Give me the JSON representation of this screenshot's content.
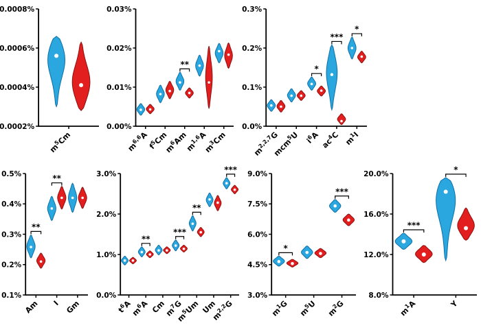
{
  "figure": {
    "background": "#FFFFFF",
    "description": "Violin plots of RNA modification levels, blue vs red group, seven panels"
  },
  "colors": {
    "blue": "#2BA7E0",
    "blue_stroke": "#0E6FA6",
    "red": "#E21E1E",
    "red_stroke": "#8E1010",
    "median": "#FFFFFF",
    "axis": "#000000",
    "stars": "#000000"
  },
  "chart_data": [
    {
      "type": "violin",
      "name": "panel-m5Cm",
      "ylim": [
        0.0002,
        0.0008
      ],
      "yticks": [
        {
          "v": 0.0002,
          "label": "0.0002%"
        },
        {
          "v": 0.0004,
          "label": "0.0004%"
        },
        {
          "v": 0.0006,
          "label": "0.0006%"
        },
        {
          "v": 0.0008,
          "label": "0.0008%"
        }
      ],
      "categories": [
        "m^5^Cm"
      ],
      "series": [
        {
          "name": "group-blue",
          "color": "blue",
          "violins": [
            {
              "m": 0.00056,
              "lo": 0.0003,
              "hi": 0.00066,
              "b": 0.3
            }
          ]
        },
        {
          "name": "group-red",
          "color": "red",
          "violins": [
            {
              "m": 0.00041,
              "lo": 0.00028,
              "hi": 0.00063,
              "b": 0.6
            }
          ]
        }
      ],
      "significance": []
    },
    {
      "type": "violin",
      "name": "panel-low-abundance",
      "ylim": [
        0,
        0.03
      ],
      "yticks": [
        {
          "v": 0,
          "label": "0.00%"
        },
        {
          "v": 0.01,
          "label": "0.01%"
        },
        {
          "v": 0.02,
          "label": "0.02%"
        },
        {
          "v": 0.03,
          "label": "0.03%"
        }
      ],
      "categories": [
        "m^6,6^A",
        "f^5^Cm",
        "m^6^Am",
        "m^1,6^A",
        "m^3^Cm"
      ],
      "series": [
        {
          "name": "group-blue",
          "color": "blue",
          "violins": [
            {
              "m": 0.0042,
              "lo": 0.0028,
              "hi": 0.0058
            },
            {
              "m": 0.0082,
              "lo": 0.006,
              "hi": 0.0105
            },
            {
              "m": 0.0112,
              "lo": 0.0092,
              "hi": 0.0138
            },
            {
              "m": 0.0155,
              "lo": 0.0128,
              "hi": 0.0182
            },
            {
              "m": 0.0192,
              "lo": 0.0162,
              "hi": 0.0212
            }
          ]
        },
        {
          "name": "group-red",
          "color": "red",
          "violins": [
            {
              "m": 0.0043,
              "lo": 0.0032,
              "hi": 0.0056
            },
            {
              "m": 0.009,
              "lo": 0.007,
              "hi": 0.0115
            },
            {
              "m": 0.0085,
              "lo": 0.0072,
              "hi": 0.0098
            },
            {
              "m": 0.0112,
              "lo": 0.0045,
              "hi": 0.0205,
              "w": 0.85
            },
            {
              "m": 0.0183,
              "lo": 0.0148,
              "hi": 0.0213
            }
          ]
        }
      ],
      "significance": [
        {
          "category": 2,
          "stars": "**"
        }
      ]
    },
    {
      "type": "violin",
      "name": "panel-mid-abundance",
      "ylim": [
        0,
        0.3
      ],
      "yticks": [
        {
          "v": 0,
          "label": "0.0%"
        },
        {
          "v": 0.1,
          "label": "0.1%"
        },
        {
          "v": 0.2,
          "label": "0.2%"
        },
        {
          "v": 0.3,
          "label": "0.3%"
        }
      ],
      "categories": [
        "m^2,2,7^G",
        "mcm^5^U",
        "i^6^A",
        "ac^4^C",
        "m^1^I"
      ],
      "series": [
        {
          "name": "group-blue",
          "color": "blue",
          "violins": [
            {
              "m": 0.053,
              "lo": 0.038,
              "hi": 0.068
            },
            {
              "m": 0.078,
              "lo": 0.062,
              "hi": 0.096
            },
            {
              "m": 0.108,
              "lo": 0.092,
              "hi": 0.126
            },
            {
              "m": 0.132,
              "lo": 0.042,
              "hi": 0.208,
              "b": 0.42,
              "w": 1.35
            },
            {
              "m": 0.2,
              "lo": 0.172,
              "hi": 0.228
            }
          ]
        },
        {
          "name": "group-red",
          "color": "red",
          "violins": [
            {
              "m": 0.05,
              "lo": 0.036,
              "hi": 0.066
            },
            {
              "m": 0.078,
              "lo": 0.066,
              "hi": 0.091
            },
            {
              "m": 0.091,
              "lo": 0.077,
              "hi": 0.103
            },
            {
              "m": 0.013,
              "lo": 0.004,
              "hi": 0.032
            },
            {
              "m": 0.178,
              "lo": 0.162,
              "hi": 0.192
            }
          ]
        }
      ],
      "significance": [
        {
          "category": 2,
          "stars": "*"
        },
        {
          "category": 3,
          "stars": "***"
        },
        {
          "category": 4,
          "stars": "*"
        }
      ]
    },
    {
      "type": "violin",
      "name": "panel-Am-I-Gm",
      "ylim": [
        0.1,
        0.5
      ],
      "yticks": [
        {
          "v": 0.1,
          "label": "0.1%"
        },
        {
          "v": 0.2,
          "label": "0.2%"
        },
        {
          "v": 0.3,
          "label": "0.3%"
        },
        {
          "v": 0.4,
          "label": "0.4%"
        },
        {
          "v": 0.5,
          "label": "0.5%"
        }
      ],
      "categories": [
        "Am",
        "I",
        "Gm"
      ],
      "series": [
        {
          "name": "group-blue",
          "color": "blue",
          "violins": [
            {
              "m": 0.258,
              "lo": 0.222,
              "hi": 0.298
            },
            {
              "m": 0.385,
              "lo": 0.345,
              "hi": 0.425
            },
            {
              "m": 0.42,
              "lo": 0.372,
              "hi": 0.468
            }
          ]
        },
        {
          "name": "group-red",
          "color": "red",
          "violins": [
            {
              "m": 0.21,
              "lo": 0.188,
              "hi": 0.238
            },
            {
              "m": 0.42,
              "lo": 0.383,
              "hi": 0.458
            },
            {
              "m": 0.42,
              "lo": 0.385,
              "hi": 0.455
            }
          ]
        }
      ],
      "significance": [
        {
          "category": 0,
          "stars": "**"
        },
        {
          "category": 1,
          "stars": "**"
        }
      ]
    },
    {
      "type": "violin",
      "name": "panel-high-abundance",
      "ylim": [
        0,
        3
      ],
      "yticks": [
        {
          "v": 0,
          "label": "0.0%"
        },
        {
          "v": 1,
          "label": "1.0%"
        },
        {
          "v": 2,
          "label": "2.0%"
        },
        {
          "v": 3,
          "label": "3.0%"
        }
      ],
      "categories": [
        "t^6^A",
        "m^6^A",
        "Cm",
        "m^7^G",
        "m^5^Um",
        "Um",
        "m^2,2^G"
      ],
      "series": [
        {
          "name": "group-blue",
          "color": "blue",
          "violins": [
            {
              "m": 0.85,
              "lo": 0.74,
              "hi": 0.96
            },
            {
              "m": 1.06,
              "lo": 0.94,
              "hi": 1.19
            },
            {
              "m": 1.1,
              "lo": 0.99,
              "hi": 1.23
            },
            {
              "m": 1.22,
              "lo": 1.09,
              "hi": 1.36
            },
            {
              "m": 1.76,
              "lo": 1.58,
              "hi": 1.96
            },
            {
              "m": 2.36,
              "lo": 2.18,
              "hi": 2.52
            },
            {
              "m": 2.76,
              "lo": 2.62,
              "hi": 2.9
            }
          ]
        },
        {
          "name": "group-red",
          "color": "red",
          "violins": [
            {
              "m": 0.85,
              "lo": 0.77,
              "hi": 0.93
            },
            {
              "m": 1.0,
              "lo": 0.92,
              "hi": 1.09
            },
            {
              "m": 1.1,
              "lo": 1.02,
              "hi": 1.19
            },
            {
              "m": 1.14,
              "lo": 1.06,
              "hi": 1.23
            },
            {
              "m": 1.55,
              "lo": 1.44,
              "hi": 1.67
            },
            {
              "m": 2.28,
              "lo": 2.08,
              "hi": 2.46
            },
            {
              "m": 2.6,
              "lo": 2.5,
              "hi": 2.71
            }
          ]
        }
      ],
      "significance": [
        {
          "category": 1,
          "stars": "**"
        },
        {
          "category": 3,
          "stars": "***"
        },
        {
          "category": 4,
          "stars": "**"
        },
        {
          "category": 6,
          "stars": "***"
        }
      ]
    },
    {
      "type": "violin",
      "name": "panel-m1G-m5U-m2G",
      "ylim": [
        3,
        9
      ],
      "yticks": [
        {
          "v": 3,
          "label": "3.0%"
        },
        {
          "v": 4.5,
          "label": "4.5%"
        },
        {
          "v": 6,
          "label": "6.0%"
        },
        {
          "v": 7.5,
          "label": "7.5%"
        },
        {
          "v": 9,
          "label": "9.0%"
        }
      ],
      "categories": [
        "m^1^G",
        "m^5^U",
        "m^2^G"
      ],
      "series": [
        {
          "name": "group-blue",
          "color": "blue",
          "violins": [
            {
              "m": 4.65,
              "lo": 4.42,
              "hi": 4.92
            },
            {
              "m": 5.1,
              "lo": 4.8,
              "hi": 5.42
            },
            {
              "m": 7.4,
              "lo": 7.08,
              "hi": 7.72
            }
          ]
        },
        {
          "name": "group-red",
          "color": "red",
          "violins": [
            {
              "m": 4.55,
              "lo": 4.38,
              "hi": 4.76
            },
            {
              "m": 5.05,
              "lo": 4.84,
              "hi": 5.3
            },
            {
              "m": 6.7,
              "lo": 6.42,
              "hi": 7.0
            }
          ]
        }
      ],
      "significance": [
        {
          "category": 0,
          "stars": "*"
        },
        {
          "category": 2,
          "stars": "***"
        }
      ]
    },
    {
      "type": "violin",
      "name": "panel-m1A-Y",
      "ylim": [
        8,
        20
      ],
      "yticks": [
        {
          "v": 8,
          "label": "8.0%"
        },
        {
          "v": 12,
          "label": "12.0%"
        },
        {
          "v": 16,
          "label": "16.0%"
        },
        {
          "v": 20,
          "label": "20.0%"
        }
      ],
      "categories": [
        "m^1^A",
        "Y"
      ],
      "series": [
        {
          "name": "group-blue",
          "color": "blue",
          "violins": [
            {
              "m": 13.3,
              "lo": 12.5,
              "hi": 14.1
            },
            {
              "m": 18.2,
              "lo": 11.4,
              "hi": 19.6,
              "b": 0.22,
              "w": 1.25
            }
          ]
        },
        {
          "name": "group-red",
          "color": "red",
          "violins": [
            {
              "m": 12.0,
              "lo": 11.2,
              "hi": 12.9
            },
            {
              "m": 14.6,
              "lo": 13.4,
              "hi": 16.6,
              "b": 0.55
            }
          ]
        }
      ],
      "significance": [
        {
          "category": 0,
          "stars": "***"
        },
        {
          "category": 1,
          "stars": "*"
        }
      ]
    }
  ]
}
